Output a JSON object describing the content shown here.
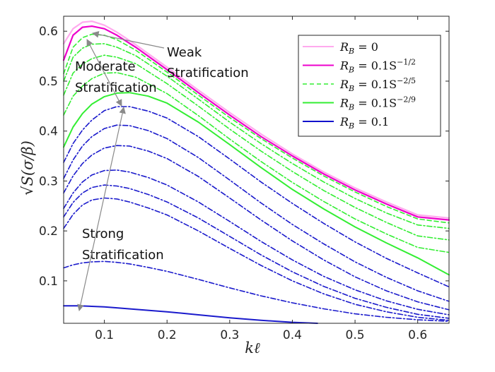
{
  "chart_data": {
    "type": "line",
    "xlabel": "kℓ",
    "ylabel": "√S(σ/β)",
    "xlim": [
      0.035,
      0.65
    ],
    "ylim": [
      0.015,
      0.63
    ],
    "x_ticks": [
      "0.1",
      "0.2",
      "0.3",
      "0.4",
      "0.5",
      "0.6"
    ],
    "y_ticks": [
      "0.1",
      "0.2",
      "0.3",
      "0.4",
      "0.5",
      "0.6"
    ],
    "grid": false,
    "legend": {
      "placement": "top-right",
      "entries": [
        {
          "label_main": "R",
          "label_sub": "B",
          "label_rest": " = 0",
          "color": "#ffaaee",
          "dash": "solid"
        },
        {
          "label_main": "R",
          "label_sub": "B",
          "label_rest": " = 0.1S",
          "label_sup": "−1/2",
          "color": "#ee00cc",
          "dash": "solid"
        },
        {
          "label_main": "R",
          "label_sub": "B",
          "label_rest": " = 0.1S",
          "label_sup": "−2/5",
          "color": "#33ee33",
          "dash": "dashed"
        },
        {
          "label_main": "R",
          "label_sub": "B",
          "label_rest": " = 0.1S",
          "label_sup": "−2/9",
          "color": "#33ee33",
          "dash": "solid"
        },
        {
          "label_main": "R",
          "label_sub": "B",
          "label_rest": " = 0.1",
          "color": "#1111cc",
          "dash": "solid"
        }
      ]
    },
    "annotations": [
      {
        "id": "weak",
        "lines": [
          "Weak",
          "Stratification"
        ]
      },
      {
        "id": "moderate",
        "lines": [
          "Moderate",
          "Stratification"
        ]
      },
      {
        "id": "strong",
        "lines": [
          "Strong",
          "Stratification"
        ]
      }
    ],
    "series": [
      {
        "color": "#ffaaee",
        "dash": "solid",
        "width": 2.2,
        "x": [
          0.035,
          0.05,
          0.065,
          0.08,
          0.1,
          0.12,
          0.15,
          0.2,
          0.25,
          0.3,
          0.35,
          0.4,
          0.45,
          0.5,
          0.55,
          0.6,
          0.65
        ],
        "y": [
          0.575,
          0.605,
          0.618,
          0.62,
          0.612,
          0.598,
          0.573,
          0.528,
          0.482,
          0.437,
          0.394,
          0.354,
          0.318,
          0.286,
          0.258,
          0.232,
          0.226
        ]
      },
      {
        "color": "#ee00cc",
        "dash": "solid",
        "width": 2.2,
        "x": [
          0.035,
          0.05,
          0.065,
          0.08,
          0.1,
          0.12,
          0.15,
          0.2,
          0.25,
          0.3,
          0.35,
          0.4,
          0.45,
          0.5,
          0.55,
          0.6,
          0.65
        ],
        "y": [
          0.542,
          0.592,
          0.608,
          0.61,
          0.605,
          0.592,
          0.568,
          0.523,
          0.477,
          0.432,
          0.389,
          0.35,
          0.314,
          0.282,
          0.254,
          0.228,
          0.222
        ]
      },
      {
        "color": "#33ee33",
        "dash": "dash",
        "width": 1.6,
        "x": [
          0.035,
          0.05,
          0.065,
          0.08,
          0.1,
          0.12,
          0.15,
          0.2,
          0.25,
          0.3,
          0.35,
          0.4,
          0.45,
          0.5,
          0.55,
          0.6,
          0.65
        ],
        "y": [
          0.515,
          0.568,
          0.587,
          0.594,
          0.592,
          0.583,
          0.562,
          0.518,
          0.472,
          0.427,
          0.385,
          0.346,
          0.31,
          0.278,
          0.249,
          0.224,
          0.216
        ]
      },
      {
        "color": "#33ee33",
        "dash": "dashdot",
        "width": 1.6,
        "x": [
          0.035,
          0.05,
          0.065,
          0.08,
          0.1,
          0.12,
          0.15,
          0.2,
          0.25,
          0.3,
          0.35,
          0.4,
          0.45,
          0.5,
          0.55,
          0.6,
          0.65
        ],
        "y": [
          0.5,
          0.548,
          0.566,
          0.574,
          0.575,
          0.568,
          0.551,
          0.51,
          0.464,
          0.418,
          0.375,
          0.335,
          0.298,
          0.265,
          0.236,
          0.212,
          0.205
        ]
      },
      {
        "color": "#33ee33",
        "dash": "dashdot",
        "width": 1.6,
        "x": [
          0.035,
          0.05,
          0.065,
          0.08,
          0.1,
          0.12,
          0.15,
          0.2,
          0.25,
          0.3,
          0.35,
          0.4,
          0.45,
          0.5,
          0.55,
          0.6,
          0.65
        ],
        "y": [
          0.472,
          0.516,
          0.534,
          0.545,
          0.552,
          0.548,
          0.535,
          0.495,
          0.45,
          0.404,
          0.36,
          0.319,
          0.281,
          0.247,
          0.217,
          0.19,
          0.182
        ]
      },
      {
        "color": "#33ee33",
        "dash": "dashdot",
        "width": 1.6,
        "x": [
          0.035,
          0.05,
          0.065,
          0.08,
          0.1,
          0.12,
          0.15,
          0.2,
          0.25,
          0.3,
          0.35,
          0.4,
          0.45,
          0.5,
          0.55,
          0.6,
          0.65
        ],
        "y": [
          0.432,
          0.47,
          0.49,
          0.505,
          0.516,
          0.517,
          0.508,
          0.475,
          0.431,
          0.384,
          0.339,
          0.297,
          0.259,
          0.224,
          0.194,
          0.167,
          0.157
        ]
      },
      {
        "color": "#33ee33",
        "dash": "solid",
        "width": 2.0,
        "x": [
          0.035,
          0.05,
          0.065,
          0.08,
          0.1,
          0.12,
          0.14,
          0.17,
          0.2,
          0.25,
          0.3,
          0.35,
          0.4,
          0.45,
          0.5,
          0.55,
          0.6,
          0.65
        ],
        "y": [
          0.368,
          0.408,
          0.435,
          0.454,
          0.469,
          0.476,
          0.477,
          0.47,
          0.456,
          0.418,
          0.373,
          0.327,
          0.283,
          0.244,
          0.208,
          0.176,
          0.146,
          0.112
        ]
      },
      {
        "color": "#1a1acc",
        "dash": "dashdot",
        "width": 1.6,
        "x": [
          0.035,
          0.05,
          0.065,
          0.08,
          0.1,
          0.12,
          0.14,
          0.17,
          0.2,
          0.25,
          0.3,
          0.35,
          0.4,
          0.45,
          0.5,
          0.55,
          0.6,
          0.65
        ],
        "y": [
          0.337,
          0.375,
          0.402,
          0.422,
          0.441,
          0.449,
          0.449,
          0.44,
          0.426,
          0.389,
          0.344,
          0.298,
          0.255,
          0.215,
          0.178,
          0.145,
          0.116,
          0.088
        ]
      },
      {
        "color": "#1a1acc",
        "dash": "dashdot",
        "width": 1.6,
        "x": [
          0.035,
          0.05,
          0.065,
          0.08,
          0.1,
          0.12,
          0.14,
          0.17,
          0.2,
          0.25,
          0.3,
          0.35,
          0.4,
          0.45,
          0.5,
          0.55,
          0.6,
          0.65
        ],
        "y": [
          0.305,
          0.342,
          0.37,
          0.389,
          0.405,
          0.412,
          0.411,
          0.401,
          0.385,
          0.347,
          0.302,
          0.256,
          0.213,
          0.174,
          0.138,
          0.107,
          0.08,
          0.059
        ]
      },
      {
        "color": "#1a1acc",
        "dash": "dashdot",
        "width": 1.6,
        "x": [
          0.035,
          0.05,
          0.065,
          0.08,
          0.1,
          0.12,
          0.14,
          0.17,
          0.2,
          0.25,
          0.3,
          0.35,
          0.4,
          0.45,
          0.5,
          0.55,
          0.6,
          0.65
        ],
        "y": [
          0.276,
          0.31,
          0.335,
          0.352,
          0.366,
          0.371,
          0.37,
          0.36,
          0.345,
          0.309,
          0.266,
          0.222,
          0.18,
          0.142,
          0.108,
          0.08,
          0.058,
          0.042
        ]
      },
      {
        "color": "#1a1acc",
        "dash": "dashdot",
        "width": 1.6,
        "x": [
          0.035,
          0.05,
          0.065,
          0.08,
          0.1,
          0.12,
          0.14,
          0.17,
          0.2,
          0.25,
          0.3,
          0.35,
          0.4,
          0.45,
          0.5,
          0.55,
          0.6,
          0.65
        ],
        "y": [
          0.245,
          0.276,
          0.298,
          0.312,
          0.321,
          0.322,
          0.318,
          0.307,
          0.292,
          0.258,
          0.219,
          0.179,
          0.142,
          0.109,
          0.082,
          0.06,
          0.043,
          0.032
        ]
      },
      {
        "color": "#1a1acc",
        "dash": "dashdot",
        "width": 1.6,
        "x": [
          0.035,
          0.05,
          0.065,
          0.08,
          0.1,
          0.12,
          0.14,
          0.17,
          0.2,
          0.25,
          0.3,
          0.35,
          0.4,
          0.45,
          0.5,
          0.55,
          0.6,
          0.65
        ],
        "y": [
          0.228,
          0.257,
          0.276,
          0.287,
          0.292,
          0.29,
          0.285,
          0.273,
          0.258,
          0.226,
          0.189,
          0.152,
          0.118,
          0.089,
          0.065,
          0.047,
          0.033,
          0.025
        ]
      },
      {
        "color": "#1a1acc",
        "dash": "dashdot",
        "width": 1.6,
        "x": [
          0.035,
          0.05,
          0.065,
          0.08,
          0.1,
          0.12,
          0.14,
          0.17,
          0.2,
          0.25,
          0.3,
          0.35,
          0.4,
          0.45,
          0.5,
          0.55,
          0.6,
          0.65
        ],
        "y": [
          0.205,
          0.233,
          0.252,
          0.262,
          0.266,
          0.264,
          0.258,
          0.246,
          0.232,
          0.2,
          0.165,
          0.131,
          0.1,
          0.074,
          0.053,
          0.038,
          0.027,
          0.021
        ]
      },
      {
        "color": "#1a1acc",
        "dash": "dashdot",
        "width": 1.6,
        "x": [
          0.035,
          0.05,
          0.065,
          0.08,
          0.1,
          0.12,
          0.14,
          0.17,
          0.2,
          0.25,
          0.3,
          0.35,
          0.4,
          0.45,
          0.5,
          0.55,
          0.6,
          0.65
        ],
        "y": [
          0.126,
          0.132,
          0.136,
          0.138,
          0.139,
          0.137,
          0.134,
          0.127,
          0.119,
          0.103,
          0.086,
          0.07,
          0.056,
          0.044,
          0.034,
          0.027,
          0.022,
          0.019
        ]
      },
      {
        "color": "#1a1acc",
        "dash": "solid",
        "width": 2.0,
        "x": [
          0.035,
          0.06,
          0.08,
          0.1,
          0.12,
          0.15,
          0.2,
          0.25,
          0.3,
          0.35,
          0.4,
          0.44
        ],
        "y": [
          0.05,
          0.05,
          0.049,
          0.048,
          0.046,
          0.043,
          0.038,
          0.032,
          0.026,
          0.021,
          0.017,
          0.015
        ]
      }
    ]
  }
}
